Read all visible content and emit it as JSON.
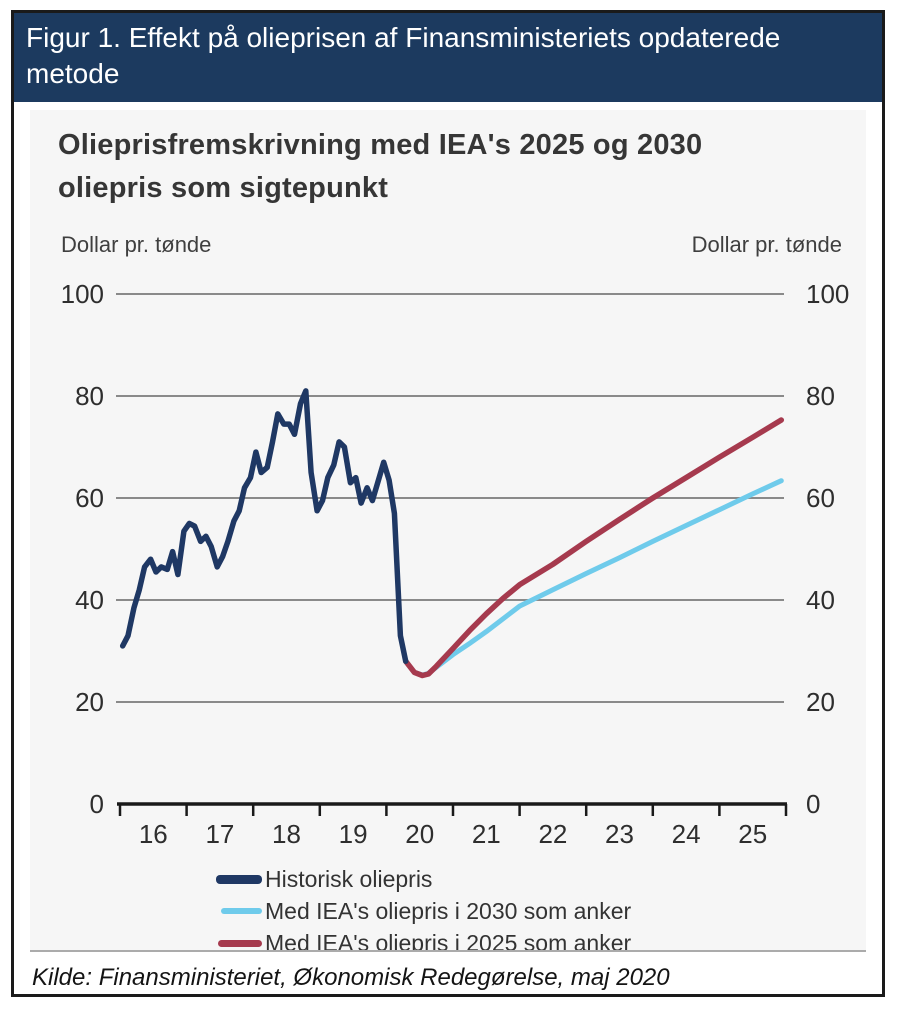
{
  "figure": {
    "header": "Figur 1. Effekt på olieprisen af Finansministeriets opdaterede\nmetode",
    "source": "Kilde: Finansministeriet, Økonomisk Redegørelse, maj 2020"
  },
  "chart": {
    "title": "Olieprisfremskrivning med IEA's 2025 og 2030\noliepris som sigtepunkt",
    "y_unit_left": "Dollar pr. tønde",
    "y_unit_right": "Dollar pr. tønde"
  },
  "chart_data": {
    "type": "line",
    "title": "Olieprisfremskrivning med IEA's 2025 og 2030 oliepris som sigtepunkt",
    "xlabel": "",
    "ylabel": "Dollar pr. tønde",
    "ylim": [
      0,
      100
    ],
    "xlim": [
      2015.97,
      2026.03
    ],
    "y_ticks": [
      0,
      20,
      40,
      60,
      80,
      100
    ],
    "x_ticks": [
      2016,
      2017,
      2018,
      2019,
      2020,
      2021,
      2022,
      2023,
      2024,
      2025,
      2026
    ],
    "x_tick_labels": [
      "16",
      "17",
      "18",
      "19",
      "20",
      "21",
      "22",
      "23",
      "24",
      "25"
    ],
    "grid": true,
    "legend_position": "bottom-left",
    "style": {
      "grid_color": "#8a8a8a",
      "axis_color": "#1a1a1a"
    },
    "draw_order": [
      1,
      2,
      0
    ],
    "series": [
      {
        "name": "Historisk oliepris",
        "color": "#1F3864",
        "stroke_width": 5.5,
        "swatch_w": 46,
        "swatch_h": 9,
        "points": [
          [
            2016.04,
            31
          ],
          [
            2016.12,
            33
          ],
          [
            2016.21,
            38.5
          ],
          [
            2016.29,
            42
          ],
          [
            2016.37,
            46.5
          ],
          [
            2016.46,
            48
          ],
          [
            2016.54,
            45.5
          ],
          [
            2016.62,
            46.5
          ],
          [
            2016.71,
            46
          ],
          [
            2016.79,
            49.5
          ],
          [
            2016.87,
            45
          ],
          [
            2016.96,
            53.5
          ],
          [
            2017.04,
            55
          ],
          [
            2017.12,
            54.5
          ],
          [
            2017.21,
            51.5
          ],
          [
            2017.29,
            52.5
          ],
          [
            2017.37,
            50.5
          ],
          [
            2017.46,
            46.5
          ],
          [
            2017.54,
            48.5
          ],
          [
            2017.62,
            51.5
          ],
          [
            2017.71,
            55.5
          ],
          [
            2017.79,
            57.5
          ],
          [
            2017.87,
            62
          ],
          [
            2017.96,
            64
          ],
          [
            2018.04,
            69
          ],
          [
            2018.12,
            65
          ],
          [
            2018.21,
            66
          ],
          [
            2018.29,
            71
          ],
          [
            2018.37,
            76.5
          ],
          [
            2018.46,
            74.5
          ],
          [
            2018.54,
            74.5
          ],
          [
            2018.62,
            72.5
          ],
          [
            2018.71,
            78.5
          ],
          [
            2018.79,
            81
          ],
          [
            2018.87,
            65
          ],
          [
            2018.96,
            57.5
          ],
          [
            2019.04,
            59.5
          ],
          [
            2019.12,
            64
          ],
          [
            2019.21,
            66.5
          ],
          [
            2019.29,
            71
          ],
          [
            2019.37,
            70
          ],
          [
            2019.46,
            63
          ],
          [
            2019.54,
            64
          ],
          [
            2019.62,
            59
          ],
          [
            2019.71,
            62
          ],
          [
            2019.79,
            59.5
          ],
          [
            2019.87,
            63
          ],
          [
            2019.96,
            67
          ],
          [
            2020.04,
            63.5
          ],
          [
            2020.12,
            57
          ],
          [
            2020.21,
            33
          ],
          [
            2020.29,
            28
          ]
        ]
      },
      {
        "name": "Med IEA's oliepris i 2030 som anker",
        "color": "#6FCBEB",
        "stroke_width": 5,
        "swatch_w": 41,
        "swatch_h": 6,
        "points": [
          [
            2020.29,
            28
          ],
          [
            2020.42,
            25.8
          ],
          [
            2020.54,
            25.3
          ],
          [
            2020.63,
            25.6
          ],
          [
            2020.75,
            26.8
          ],
          [
            2021.0,
            29.3
          ],
          [
            2021.25,
            31.5
          ],
          [
            2021.5,
            33.8
          ],
          [
            2022.0,
            38.8
          ],
          [
            2022.5,
            42
          ],
          [
            2023.0,
            45.2
          ],
          [
            2023.5,
            48.3
          ],
          [
            2024.0,
            51.5
          ],
          [
            2024.5,
            54.6
          ],
          [
            2025.0,
            57.7
          ],
          [
            2025.5,
            60.8
          ],
          [
            2025.93,
            63.4
          ]
        ]
      },
      {
        "name": "Med IEA's oliepris i 2025 som anker",
        "color": "#A63A4E",
        "stroke_width": 5.5,
        "swatch_w": 44,
        "swatch_h": 7,
        "points": [
          [
            2020.29,
            28
          ],
          [
            2020.42,
            25.8
          ],
          [
            2020.54,
            25.2
          ],
          [
            2020.63,
            25.5
          ],
          [
            2020.75,
            27
          ],
          [
            2021.0,
            30.5
          ],
          [
            2021.25,
            34
          ],
          [
            2021.5,
            37.3
          ],
          [
            2021.75,
            40.3
          ],
          [
            2022.0,
            43
          ],
          [
            2022.5,
            47
          ],
          [
            2023.0,
            51.5
          ],
          [
            2023.5,
            55.8
          ],
          [
            2024.0,
            60
          ],
          [
            2024.5,
            64
          ],
          [
            2025.0,
            68
          ],
          [
            2025.5,
            71.9
          ],
          [
            2025.93,
            75.3
          ]
        ]
      }
    ]
  }
}
